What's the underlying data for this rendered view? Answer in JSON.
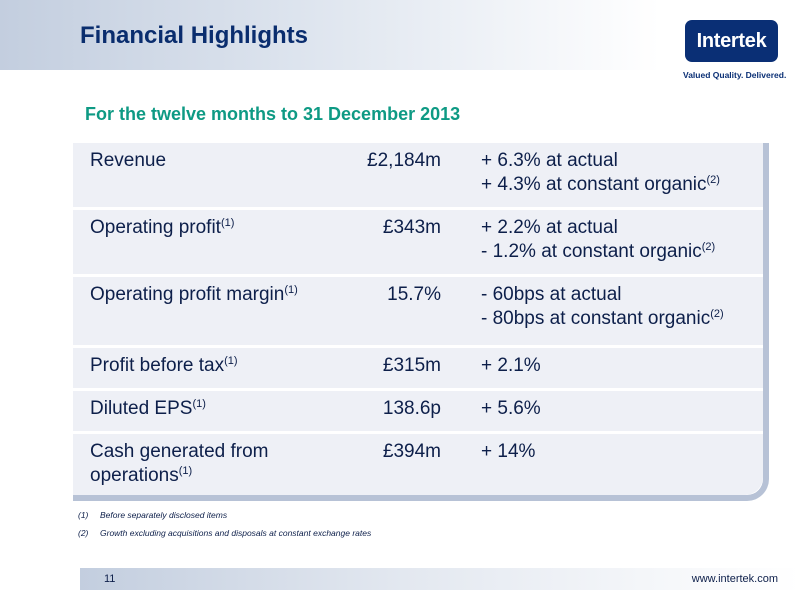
{
  "header": {
    "title": "Financial Highlights"
  },
  "logo": {
    "name": "Intertek",
    "tagline": "Valued Quality. Delivered."
  },
  "subtitle": "For the twelve months to 31 December 2013",
  "table": {
    "rows": [
      {
        "label": "Revenue",
        "label_sup": "",
        "value": "£2,184m",
        "change1": "+ 6.3% at actual",
        "change1_sup": "",
        "change2": "+ 4.3% at constant organic",
        "change2_sup": "(2)"
      },
      {
        "label": "Operating profit",
        "label_sup": "(1)",
        "value": "£343m",
        "change1": "+ 2.2% at actual",
        "change1_sup": "",
        "change2": "-  1.2% at constant organic",
        "change2_sup": "(2)"
      },
      {
        "label": "Operating profit margin",
        "label_sup": "(1)",
        "value": "15.7%",
        "change1": "-  60bps at actual",
        "change1_sup": "",
        "change2": "-  80bps at constant organic",
        "change2_sup": "(2)"
      },
      {
        "label": "Profit before tax",
        "label_sup": "(1)",
        "value": "£315m",
        "change1": "+ 2.1%",
        "change1_sup": "",
        "change2": "",
        "change2_sup": ""
      },
      {
        "label": "Diluted EPS",
        "label_sup": "(1)",
        "value": "138.6p",
        "change1": "+ 5.6%",
        "change1_sup": "",
        "change2": "",
        "change2_sup": ""
      },
      {
        "label": "Cash generated from operations",
        "label_sup": "(1)",
        "value": "£394m",
        "change1": "+ 14%",
        "change1_sup": "",
        "change2": "",
        "change2_sup": ""
      }
    ]
  },
  "footnotes": [
    {
      "num": "(1)",
      "text": "Before separately disclosed items"
    },
    {
      "num": "(2)",
      "text": "Growth excluding acquisitions and disposals at constant exchange rates"
    }
  ],
  "footer": {
    "page_number": "11",
    "website": "www.intertek.com"
  }
}
